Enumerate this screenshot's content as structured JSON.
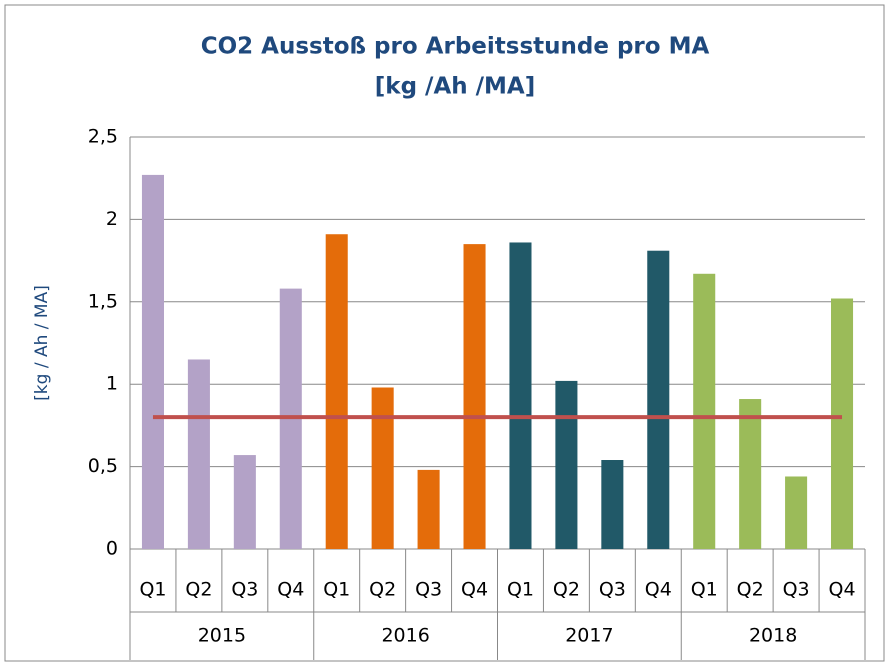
{
  "chart_data": {
    "type": "bar",
    "title": "CO2 Ausstoß pro Arbeitsstunde pro MA",
    "subtitle": "[kg /Ah /MA]",
    "y_label": "[kg / Ah / MA]",
    "categories": [
      "Q1",
      "Q2",
      "Q3",
      "Q4"
    ],
    "series": [
      {
        "name": "2015",
        "color": "#b3a2c7",
        "values": [
          2.27,
          1.15,
          0.57,
          1.58
        ]
      },
      {
        "name": "2016",
        "color": "#e46c0a",
        "values": [
          1.91,
          0.98,
          0.48,
          1.85
        ]
      },
      {
        "name": "2017",
        "color": "#215968",
        "values": [
          1.86,
          1.02,
          0.54,
          1.81
        ]
      },
      {
        "name": "2018",
        "color": "#9bbb59",
        "values": [
          1.67,
          0.91,
          0.44,
          1.52
        ]
      }
    ],
    "reference_line": {
      "value": 0.8,
      "color": "#c0504d"
    },
    "ylim": [
      0,
      2.5
    ],
    "yticks": [
      0,
      {
        "value": 0.5,
        "label": "0,5"
      },
      1,
      {
        "value": 1.5,
        "label": "1,5"
      },
      2,
      {
        "value": 2.5,
        "label": "2,5"
      }
    ],
    "grid": true
  }
}
